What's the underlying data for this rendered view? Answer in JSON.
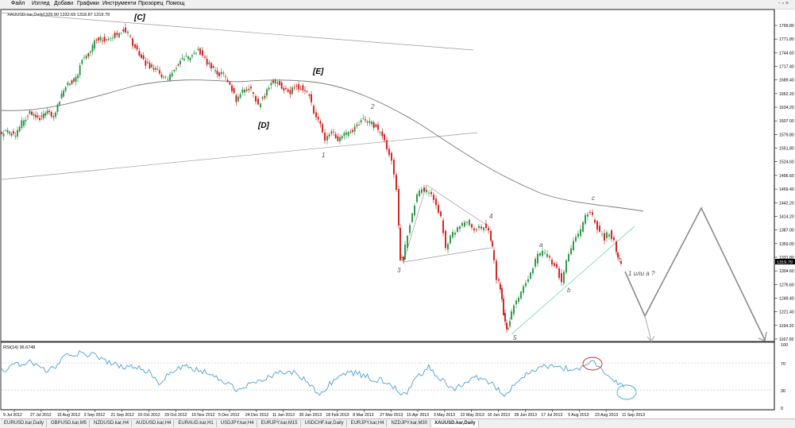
{
  "menu": {
    "items": [
      "Файл",
      "Изглед",
      "Добави",
      "Графики",
      "Инструменти",
      "Прозорец",
      "Помощ"
    ],
    "window_controls": "- ▫ ×"
  },
  "chart": {
    "symbol_header": "XAUUSD.kar,Daily",
    "ohlc_header": "1329.90 1332.69 1318.87 1319.79",
    "current_price_label": "1319.79",
    "price_axis_labels": [
      "1799.80",
      "1771.80",
      "1744.60",
      "1717.40",
      "1689.40",
      "1662.20",
      "1634.20",
      "1607.00",
      "1579.80",
      "1551.80",
      "1524.60",
      "1496.60",
      "1469.40",
      "1442.20",
      "1414.20",
      "1387.00",
      "1359.00",
      "1331.80",
      "1304.60",
      "1276.60",
      "1249.40",
      "1221.40",
      "1194.20",
      "1167.00"
    ],
    "wave_labels": [
      "[C]",
      "[E]",
      "[D]",
      "1",
      "2",
      "3",
      "4",
      "5",
      "a",
      "b",
      "c",
      "1 или a ?"
    ]
  },
  "rsi": {
    "header": "RSI(14) 36.6748",
    "axis_labels": [
      "100",
      "70",
      "30",
      "0"
    ]
  },
  "time_axis": {
    "labels": [
      "9 Jul 2012",
      "27 Jul 2012",
      "15 Aug 2012",
      "3 Sep 2012",
      "21 Sep 2012",
      "10 Oct 2012",
      "29 Oct 2012",
      "16 Nov 2012",
      "5 Dec 2012",
      "24 Dec 2012",
      "11 Jan 2013",
      "30 Jan 2013",
      "18 Feb 2013",
      "8 Mar 2013",
      "27 Mar 2013",
      "15 Apr 2013",
      "3 May 2013",
      "22 May 2013",
      "10 Jun 2013",
      "28 Jun 2013",
      "17 Jul 2013",
      "5 Aug 2013",
      "23 Aug 2013",
      "11 Sep 2013"
    ]
  },
  "tabs": [
    {
      "label": "EURUSD.kar,Daily",
      "active": false
    },
    {
      "label": "GBPUSD.kar,M5",
      "active": false
    },
    {
      "label": "NZDUSD.kar,H4",
      "active": false
    },
    {
      "label": "AUDUSD.kar,H4",
      "active": false
    },
    {
      "label": "EURAUD.kar,H1",
      "active": false
    },
    {
      "label": "USDJPY.kar,H4",
      "active": false
    },
    {
      "label": "EURJPY.kar,M15",
      "active": false
    },
    {
      "label": "USDCHF.kar,Daily",
      "active": false
    },
    {
      "label": "EURJPY.kar,H4",
      "active": false
    },
    {
      "label": "NZDJPY.kar,M30",
      "active": false
    },
    {
      "label": "XAUUSD.kar,Daily",
      "active": true
    }
  ],
  "colors": {
    "bull": "#1f8f3a",
    "bear": "#cc1111",
    "ma": "#7a7a7a",
    "rsi_line": "#4a9fd6",
    "support_line": "#7fd8c8",
    "projection": "#7a7a7a",
    "highlight_red": "#cc2222",
    "highlight_teal": "#36b6a8"
  }
}
